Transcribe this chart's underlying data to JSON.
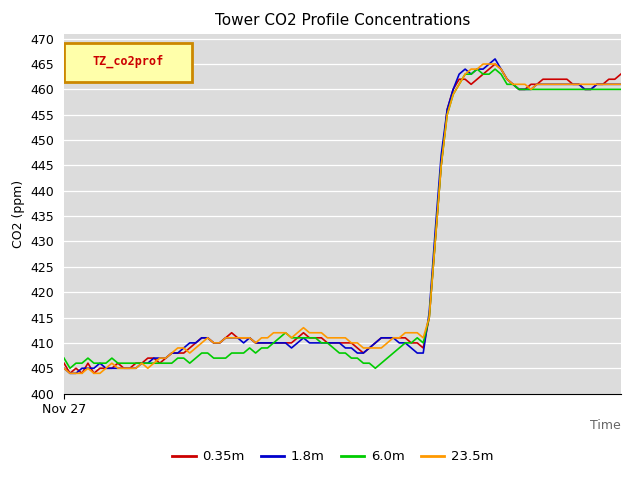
{
  "title": "Tower CO2 Profile Concentrations",
  "ylabel": "CO2 (ppm)",
  "xlabel": "Time",
  "x_start_label": "Nov 27",
  "ylim": [
    400,
    471
  ],
  "yticks": [
    400,
    405,
    410,
    415,
    420,
    425,
    430,
    435,
    440,
    445,
    450,
    455,
    460,
    465,
    470
  ],
  "bg_color": "#dcdcdc",
  "legend_label": "TZ_co2prof",
  "legend_bg": "#ffffaa",
  "legend_border": "#cc8800",
  "series": {
    "0.35m": {
      "color": "#cc0000",
      "linewidth": 1.2,
      "values": [
        406,
        404,
        405,
        404,
        406,
        404,
        405,
        405,
        405,
        406,
        405,
        405,
        406,
        406,
        407,
        407,
        406,
        407,
        408,
        408,
        408,
        409,
        410,
        411,
        411,
        410,
        410,
        411,
        412,
        411,
        411,
        411,
        410,
        410,
        410,
        410,
        410,
        410,
        410,
        411,
        412,
        411,
        411,
        411,
        410,
        410,
        410,
        410,
        410,
        409,
        408,
        409,
        410,
        411,
        411,
        411,
        411,
        411,
        410,
        410,
        409,
        415,
        430,
        445,
        456,
        460,
        462,
        462,
        461,
        462,
        463,
        464,
        465,
        464,
        462,
        461,
        460,
        460,
        461,
        461,
        462,
        462,
        462,
        462,
        462,
        461,
        461,
        460,
        460,
        461,
        461,
        462,
        462,
        463
      ]
    },
    "1.8m": {
      "color": "#0000cc",
      "linewidth": 1.2,
      "values": [
        405,
        404,
        404,
        405,
        405,
        405,
        406,
        405,
        405,
        405,
        405,
        405,
        405,
        406,
        406,
        407,
        407,
        407,
        408,
        408,
        409,
        410,
        410,
        411,
        411,
        410,
        410,
        411,
        411,
        411,
        410,
        411,
        410,
        410,
        410,
        410,
        410,
        410,
        409,
        410,
        411,
        410,
        410,
        410,
        410,
        410,
        410,
        409,
        409,
        408,
        408,
        409,
        410,
        411,
        411,
        411,
        410,
        410,
        409,
        408,
        408,
        416,
        432,
        447,
        456,
        460,
        463,
        464,
        463,
        464,
        464,
        465,
        466,
        464,
        462,
        461,
        460,
        460,
        460,
        461,
        461,
        461,
        461,
        461,
        461,
        461,
        461,
        460,
        460,
        461,
        461,
        461,
        461,
        461
      ]
    },
    "6.0m": {
      "color": "#00cc00",
      "linewidth": 1.2,
      "values": [
        407,
        405,
        406,
        406,
        407,
        406,
        406,
        406,
        407,
        406,
        406,
        406,
        406,
        406,
        406,
        406,
        406,
        406,
        406,
        407,
        407,
        406,
        407,
        408,
        408,
        407,
        407,
        407,
        408,
        408,
        408,
        409,
        408,
        409,
        409,
        410,
        411,
        412,
        411,
        411,
        411,
        411,
        411,
        410,
        410,
        409,
        408,
        408,
        407,
        407,
        406,
        406,
        405,
        406,
        407,
        408,
        409,
        410,
        410,
        411,
        410,
        415,
        430,
        445,
        455,
        459,
        461,
        463,
        463,
        464,
        463,
        463,
        464,
        463,
        461,
        461,
        460,
        460,
        460,
        460,
        460,
        460,
        460,
        460,
        460,
        460,
        460,
        460,
        460,
        460,
        460,
        460,
        460,
        460
      ]
    },
    "23.5m": {
      "color": "#ff9900",
      "linewidth": 1.2,
      "values": [
        405,
        404,
        404,
        404,
        405,
        404,
        404,
        405,
        406,
        405,
        405,
        405,
        405,
        406,
        405,
        406,
        407,
        407,
        408,
        409,
        409,
        408,
        409,
        410,
        411,
        410,
        410,
        411,
        411,
        411,
        411,
        411,
        410,
        411,
        411,
        412,
        412,
        412,
        411,
        412,
        413,
        412,
        412,
        412,
        411,
        411,
        411,
        411,
        410,
        410,
        409,
        409,
        409,
        409,
        410,
        411,
        411,
        412,
        412,
        412,
        411,
        415,
        430,
        445,
        455,
        459,
        461,
        463,
        464,
        464,
        465,
        465,
        465,
        464,
        462,
        461,
        461,
        461,
        460,
        461,
        461,
        461,
        461,
        461,
        461,
        461,
        461,
        461,
        461,
        461,
        461,
        461,
        461,
        461
      ]
    }
  }
}
